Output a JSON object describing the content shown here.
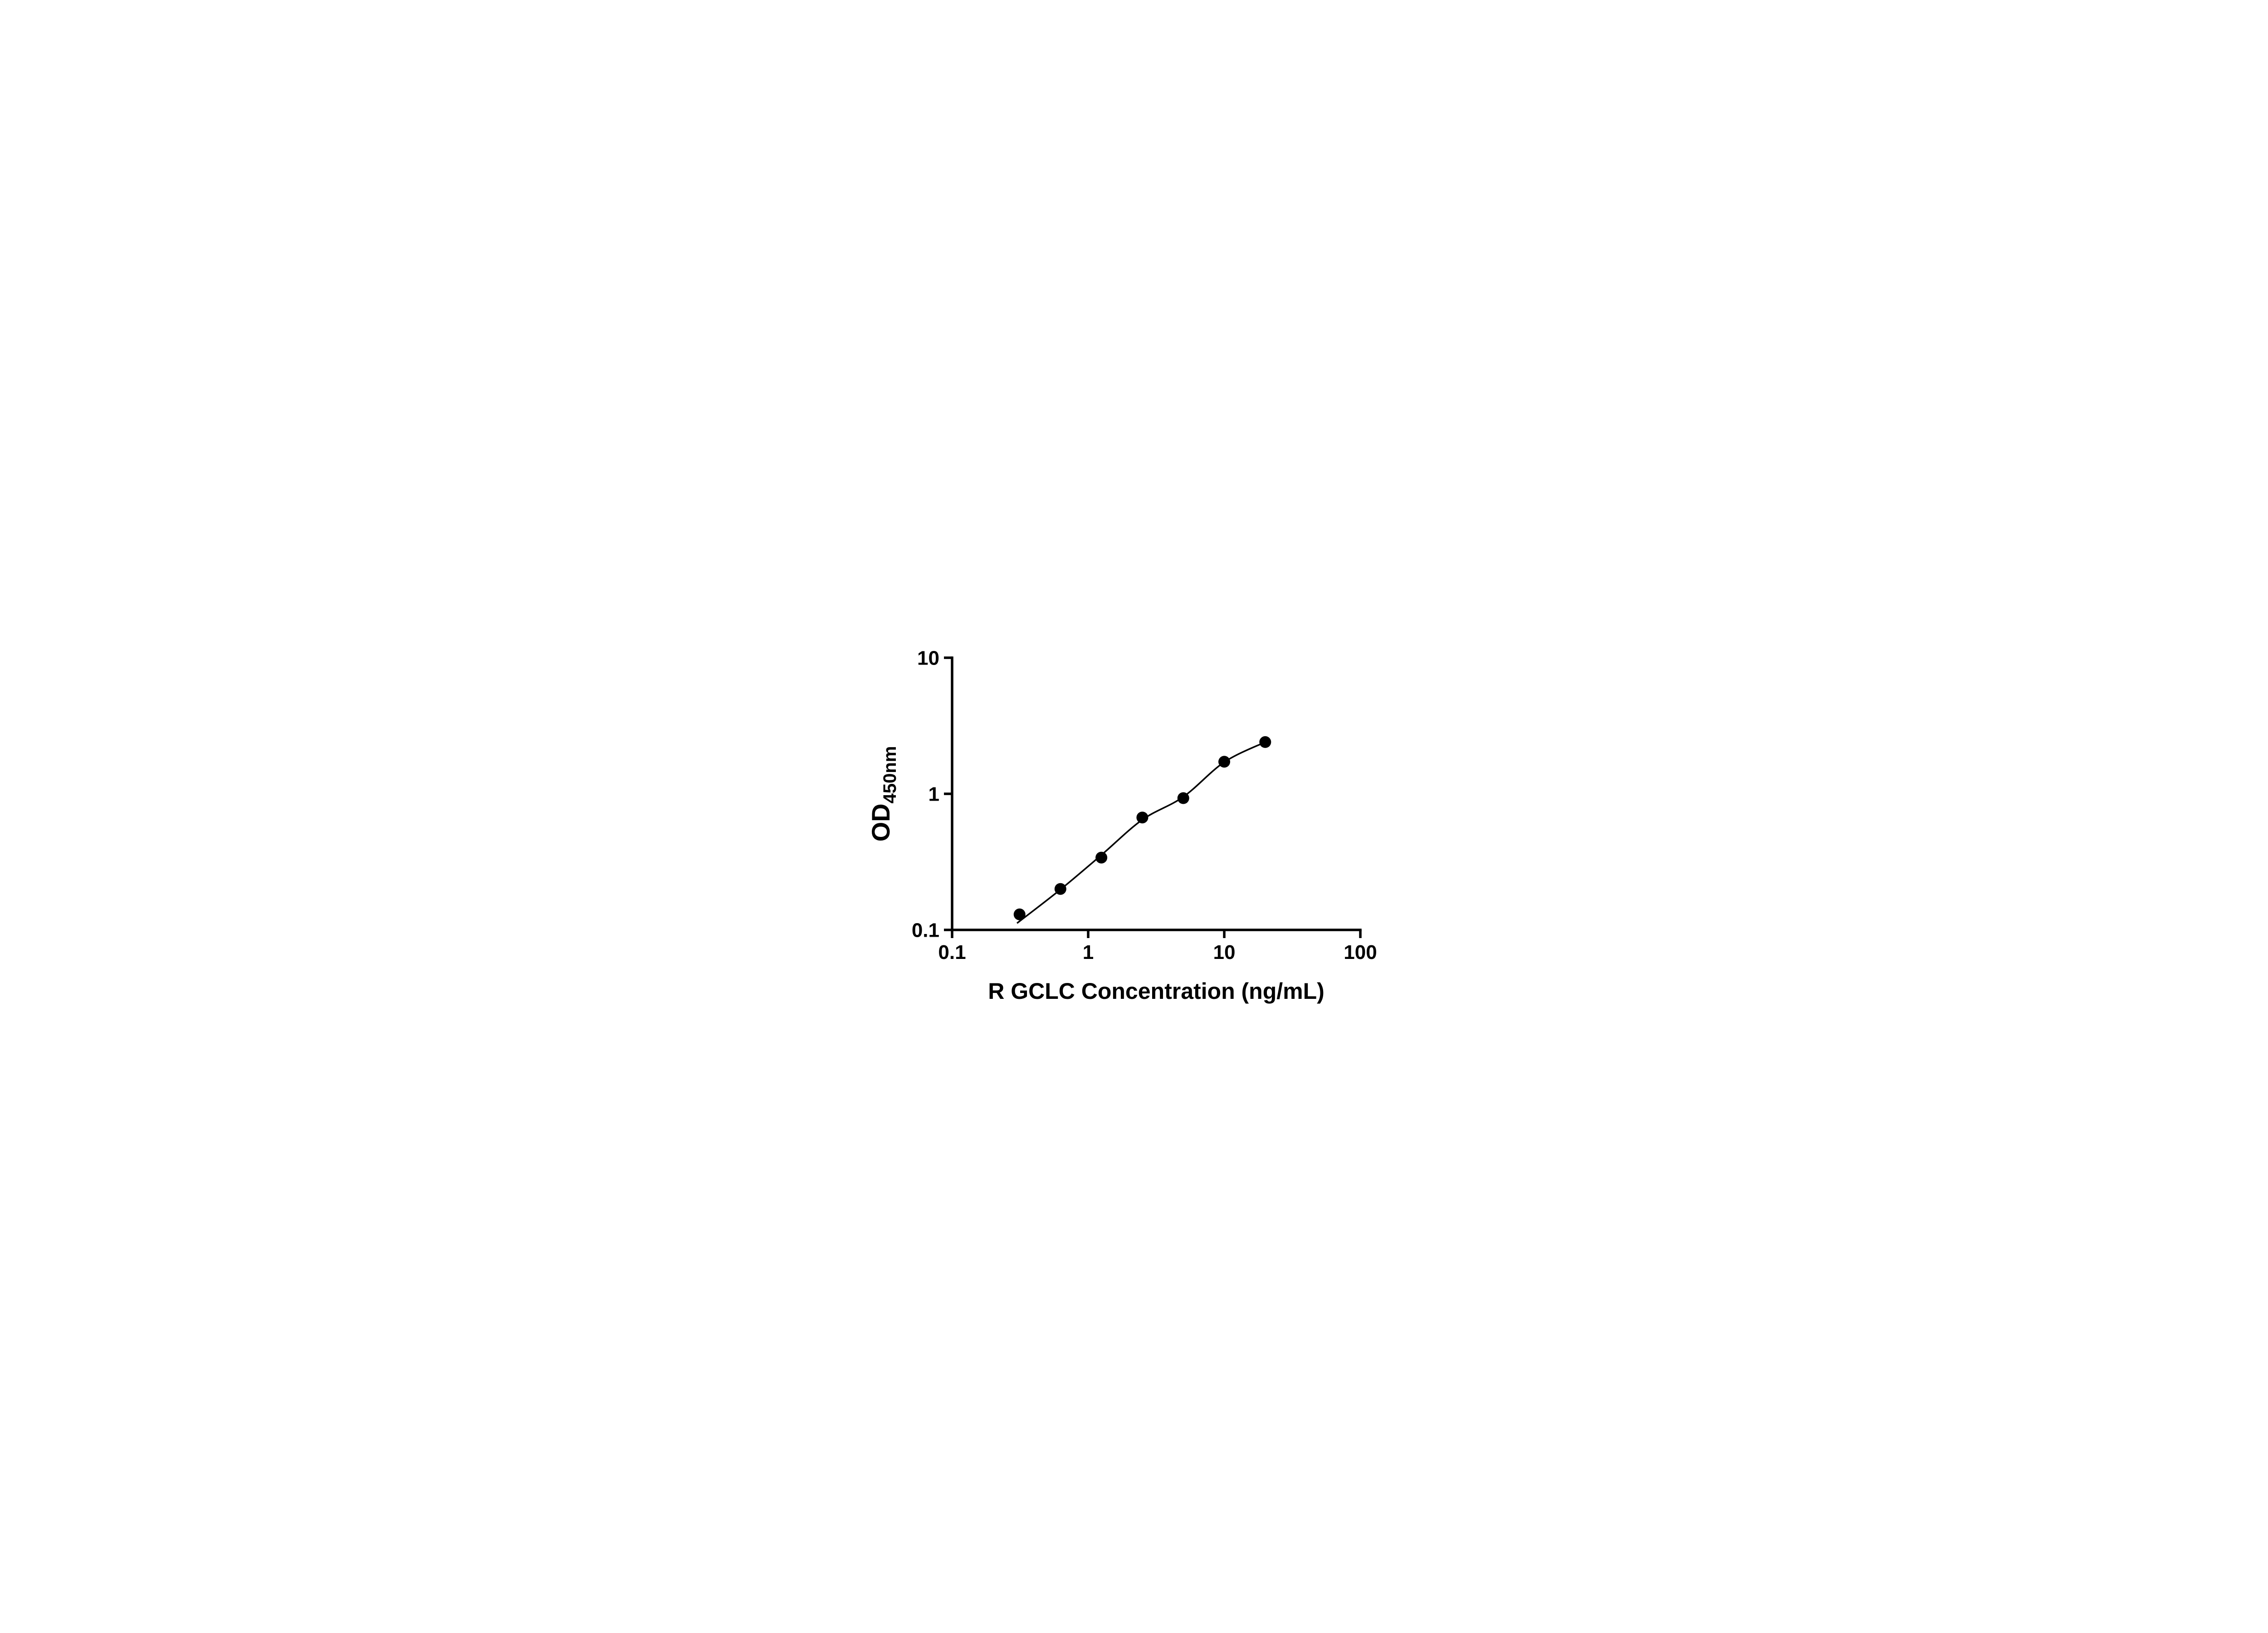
{
  "figure": {
    "background_color": "#ffffff",
    "axis_color": "#000000",
    "marker_color": "#000000",
    "curve_color": "#000000"
  },
  "chart_data": {
    "type": "scatter",
    "title": "",
    "xlabel": "R GCLC Concentration (ng/mL)",
    "ylabel": "OD450nm",
    "ylabel_parts": {
      "main": "OD",
      "sub": "450nm"
    },
    "x_scale": "log",
    "y_scale": "log",
    "xlim": [
      0.1,
      100
    ],
    "ylim": [
      0.1,
      10
    ],
    "grid": false,
    "x_ticks": [
      0.1,
      1,
      10,
      100
    ],
    "x_tick_labels": [
      "0.1",
      "1",
      "10",
      "100"
    ],
    "y_ticks": [
      10,
      1,
      0.1
    ],
    "y_tick_labels": [
      "10",
      "1",
      "0.1"
    ],
    "points": [
      {
        "x": 0.313,
        "y": 0.13
      },
      {
        "x": 0.625,
        "y": 0.2
      },
      {
        "x": 1.25,
        "y": 0.34
      },
      {
        "x": 2.5,
        "y": 0.67
      },
      {
        "x": 5.0,
        "y": 0.93
      },
      {
        "x": 10.0,
        "y": 1.72
      },
      {
        "x": 20.0,
        "y": 2.4
      }
    ],
    "fit_curve_points": [
      {
        "x": 0.3,
        "y": 0.112
      },
      {
        "x": 0.625,
        "y": 0.198
      },
      {
        "x": 1.25,
        "y": 0.355
      },
      {
        "x": 2.5,
        "y": 0.645
      },
      {
        "x": 5.0,
        "y": 0.95
      },
      {
        "x": 10.0,
        "y": 1.71
      },
      {
        "x": 20.0,
        "y": 2.4
      }
    ]
  }
}
